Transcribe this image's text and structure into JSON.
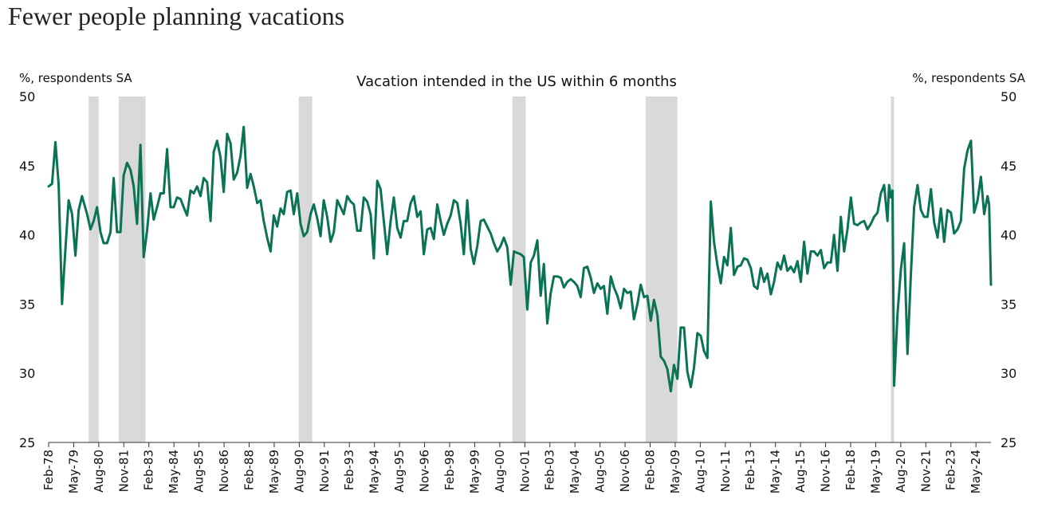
{
  "chart_data": {
    "type": "line",
    "title": "Fewer people planning vacations",
    "subtitle": "Vacation intended in the US within 6 months",
    "ylabel_left": "%, respondents SA",
    "ylabel_right": "%, respondents SA",
    "ylim": [
      25,
      50
    ],
    "yticks": [
      25,
      30,
      35,
      40,
      45,
      50
    ],
    "xlim": [
      1978.08,
      2025.17
    ],
    "x_tick_labels": [
      "Feb-78",
      "May-79",
      "Aug-80",
      "Nov-81",
      "Feb-83",
      "May-84",
      "Aug-85",
      "Nov-86",
      "Feb-88",
      "May-89",
      "Aug-90",
      "Nov-91",
      "Feb-93",
      "May-94",
      "Aug-95",
      "Nov-96",
      "Feb-98",
      "May-99",
      "Aug-00",
      "Nov-01",
      "Feb-03",
      "May-04",
      "Aug-05",
      "Nov-06",
      "Feb-08",
      "May-09",
      "Aug-10",
      "Nov-11",
      "Feb-13",
      "May-14",
      "Aug-15",
      "Nov-16",
      "Feb-18",
      "May-19",
      "Aug-20",
      "Nov-21",
      "Feb-23",
      "May-24"
    ],
    "recessions": [
      [
        1980.08,
        1980.58
      ],
      [
        1981.58,
        1982.92
      ],
      [
        1990.58,
        1991.25
      ],
      [
        2001.25,
        2001.92
      ],
      [
        2007.92,
        2009.5
      ],
      [
        2020.17,
        2020.33
      ]
    ],
    "colors": {
      "line": "#0b7355",
      "recession": "#d9d9d9"
    },
    "series": [
      {
        "values": [
          [
            1978.08,
            43.5
          ],
          [
            1978.25,
            43.7
          ],
          [
            1978.42,
            46.7
          ],
          [
            1978.58,
            43.6
          ],
          [
            1978.75,
            35.0
          ],
          [
            1978.92,
            39.0
          ],
          [
            1979.08,
            42.5
          ],
          [
            1979.25,
            41.5
          ],
          [
            1979.42,
            38.5
          ],
          [
            1979.58,
            41.8
          ],
          [
            1979.75,
            42.8
          ],
          [
            1980.0,
            41.5
          ],
          [
            1980.17,
            40.4
          ],
          [
            1980.33,
            41.0
          ],
          [
            1980.5,
            42.0
          ],
          [
            1980.67,
            40.2
          ],
          [
            1980.83,
            39.4
          ],
          [
            1981.0,
            39.4
          ],
          [
            1981.17,
            40.2
          ],
          [
            1981.33,
            44.1
          ],
          [
            1981.5,
            40.2
          ],
          [
            1981.67,
            40.2
          ],
          [
            1981.83,
            44.3
          ],
          [
            1982.0,
            45.2
          ],
          [
            1982.17,
            44.7
          ],
          [
            1982.33,
            43.5
          ],
          [
            1982.5,
            40.8
          ],
          [
            1982.67,
            46.5
          ],
          [
            1982.83,
            38.4
          ],
          [
            1983.0,
            40.3
          ],
          [
            1983.17,
            43.0
          ],
          [
            1983.33,
            41.1
          ],
          [
            1983.5,
            42.0
          ],
          [
            1983.67,
            43.0
          ],
          [
            1983.83,
            43.0
          ],
          [
            1984.0,
            46.2
          ],
          [
            1984.17,
            42.0
          ],
          [
            1984.33,
            42.0
          ],
          [
            1984.5,
            42.7
          ],
          [
            1984.67,
            42.6
          ],
          [
            1984.83,
            42.0
          ],
          [
            1985.0,
            41.4
          ],
          [
            1985.17,
            43.2
          ],
          [
            1985.33,
            43.0
          ],
          [
            1985.5,
            43.5
          ],
          [
            1985.67,
            42.8
          ],
          [
            1985.83,
            44.1
          ],
          [
            1986.0,
            43.8
          ],
          [
            1986.17,
            41.0
          ],
          [
            1986.33,
            46.0
          ],
          [
            1986.5,
            46.8
          ],
          [
            1986.67,
            45.6
          ],
          [
            1986.83,
            43.1
          ],
          [
            1987.0,
            47.3
          ],
          [
            1987.17,
            46.6
          ],
          [
            1987.33,
            44.0
          ],
          [
            1987.5,
            44.5
          ],
          [
            1987.67,
            45.7
          ],
          [
            1987.83,
            47.8
          ],
          [
            1988.0,
            43.4
          ],
          [
            1988.17,
            44.4
          ],
          [
            1988.33,
            43.5
          ],
          [
            1988.5,
            42.3
          ],
          [
            1988.67,
            42.5
          ],
          [
            1988.83,
            41.0
          ],
          [
            1989.0,
            39.8
          ],
          [
            1989.17,
            38.8
          ],
          [
            1989.33,
            41.4
          ],
          [
            1989.5,
            40.6
          ],
          [
            1989.67,
            41.9
          ],
          [
            1989.83,
            41.5
          ],
          [
            1990.0,
            43.1
          ],
          [
            1990.17,
            43.2
          ],
          [
            1990.33,
            41.5
          ],
          [
            1990.5,
            43.0
          ],
          [
            1990.67,
            40.8
          ],
          [
            1990.83,
            39.9
          ],
          [
            1991.0,
            40.2
          ],
          [
            1991.17,
            41.5
          ],
          [
            1991.33,
            42.2
          ],
          [
            1991.5,
            41.2
          ],
          [
            1991.67,
            39.9
          ],
          [
            1991.83,
            42.5
          ],
          [
            1992.0,
            41.3
          ],
          [
            1992.17,
            39.5
          ],
          [
            1992.33,
            40.2
          ],
          [
            1992.5,
            42.5
          ],
          [
            1992.67,
            42.0
          ],
          [
            1992.83,
            41.5
          ],
          [
            1993.0,
            42.8
          ],
          [
            1993.17,
            42.4
          ],
          [
            1993.33,
            42.2
          ],
          [
            1993.5,
            40.3
          ],
          [
            1993.67,
            40.3
          ],
          [
            1993.83,
            42.7
          ],
          [
            1994.0,
            42.4
          ],
          [
            1994.17,
            41.5
          ],
          [
            1994.33,
            38.3
          ],
          [
            1994.5,
            43.9
          ],
          [
            1994.67,
            43.3
          ],
          [
            1994.83,
            41.0
          ],
          [
            1995.0,
            38.6
          ],
          [
            1995.17,
            41.0
          ],
          [
            1995.33,
            42.7
          ],
          [
            1995.5,
            40.5
          ],
          [
            1995.67,
            39.8
          ],
          [
            1995.83,
            41.0
          ],
          [
            1996.0,
            41.0
          ],
          [
            1996.17,
            42.3
          ],
          [
            1996.33,
            42.8
          ],
          [
            1996.5,
            41.3
          ],
          [
            1996.67,
            41.7
          ],
          [
            1996.83,
            38.6
          ],
          [
            1997.0,
            40.4
          ],
          [
            1997.17,
            40.5
          ],
          [
            1997.33,
            39.7
          ],
          [
            1997.5,
            42.2
          ],
          [
            1997.67,
            41.0
          ],
          [
            1997.83,
            40.0
          ],
          [
            1998.0,
            40.8
          ],
          [
            1998.17,
            41.4
          ],
          [
            1998.33,
            42.5
          ],
          [
            1998.5,
            42.3
          ],
          [
            1998.67,
            40.8
          ],
          [
            1998.83,
            38.6
          ],
          [
            1999.0,
            42.5
          ],
          [
            1999.17,
            39.0
          ],
          [
            1999.33,
            37.9
          ],
          [
            1999.5,
            39.2
          ],
          [
            1999.67,
            41.0
          ],
          [
            1999.83,
            41.1
          ],
          [
            2000.0,
            40.6
          ],
          [
            2000.17,
            40.1
          ],
          [
            2000.33,
            39.4
          ],
          [
            2000.5,
            38.8
          ],
          [
            2000.67,
            39.2
          ],
          [
            2000.83,
            39.8
          ],
          [
            2001.0,
            39.1
          ],
          [
            2001.17,
            36.4
          ],
          [
            2001.33,
            38.8
          ],
          [
            2001.5,
            38.7
          ],
          [
            2001.67,
            38.6
          ],
          [
            2001.83,
            38.4
          ],
          [
            2002.0,
            34.6
          ],
          [
            2002.17,
            38.0
          ],
          [
            2002.33,
            38.5
          ],
          [
            2002.5,
            39.6
          ],
          [
            2002.67,
            35.6
          ],
          [
            2002.83,
            37.9
          ],
          [
            2003.0,
            33.6
          ],
          [
            2003.17,
            35.8
          ],
          [
            2003.33,
            37.0
          ],
          [
            2003.5,
            37.0
          ],
          [
            2003.67,
            36.9
          ],
          [
            2003.83,
            36.2
          ],
          [
            2004.0,
            36.6
          ],
          [
            2004.17,
            36.8
          ],
          [
            2004.33,
            36.6
          ],
          [
            2004.5,
            36.3
          ],
          [
            2004.67,
            35.5
          ],
          [
            2004.83,
            37.6
          ],
          [
            2005.0,
            37.7
          ],
          [
            2005.17,
            36.9
          ],
          [
            2005.33,
            35.8
          ],
          [
            2005.5,
            36.5
          ],
          [
            2005.67,
            36.1
          ],
          [
            2005.83,
            36.3
          ],
          [
            2006.0,
            34.3
          ],
          [
            2006.17,
            37.0
          ],
          [
            2006.33,
            36.2
          ],
          [
            2006.5,
            35.6
          ],
          [
            2006.67,
            34.7
          ],
          [
            2006.83,
            36.1
          ],
          [
            2007.0,
            35.8
          ],
          [
            2007.17,
            35.9
          ],
          [
            2007.33,
            33.9
          ],
          [
            2007.5,
            35.0
          ],
          [
            2007.67,
            36.4
          ],
          [
            2007.83,
            35.5
          ],
          [
            2008.0,
            35.6
          ],
          [
            2008.17,
            33.8
          ],
          [
            2008.33,
            35.3
          ],
          [
            2008.5,
            34.2
          ],
          [
            2008.67,
            31.2
          ],
          [
            2008.83,
            30.9
          ],
          [
            2009.0,
            30.3
          ],
          [
            2009.17,
            28.7
          ],
          [
            2009.33,
            30.6
          ],
          [
            2009.5,
            29.6
          ],
          [
            2009.67,
            33.3
          ],
          [
            2009.83,
            33.3
          ],
          [
            2010.0,
            30.1
          ],
          [
            2010.17,
            29.0
          ],
          [
            2010.33,
            30.4
          ],
          [
            2010.5,
            32.9
          ],
          [
            2010.67,
            32.7
          ],
          [
            2010.83,
            31.6
          ],
          [
            2011.0,
            31.1
          ],
          [
            2011.17,
            42.4
          ],
          [
            2011.33,
            39.5
          ],
          [
            2011.5,
            37.8
          ],
          [
            2011.67,
            36.5
          ],
          [
            2011.83,
            38.4
          ],
          [
            2012.0,
            37.8
          ],
          [
            2012.17,
            40.5
          ],
          [
            2012.33,
            37.1
          ],
          [
            2012.5,
            37.7
          ],
          [
            2012.67,
            37.8
          ],
          [
            2012.83,
            38.3
          ],
          [
            2013.0,
            38.2
          ],
          [
            2013.17,
            37.6
          ],
          [
            2013.33,
            36.3
          ],
          [
            2013.5,
            36.1
          ],
          [
            2013.67,
            37.6
          ],
          [
            2013.83,
            36.6
          ],
          [
            2014.0,
            37.2
          ],
          [
            2014.17,
            35.7
          ],
          [
            2014.33,
            36.6
          ],
          [
            2014.5,
            38.0
          ],
          [
            2014.67,
            37.5
          ],
          [
            2014.83,
            38.5
          ],
          [
            2015.0,
            37.4
          ],
          [
            2015.17,
            37.7
          ],
          [
            2015.33,
            37.3
          ],
          [
            2015.5,
            38.1
          ],
          [
            2015.67,
            36.6
          ],
          [
            2015.83,
            39.5
          ],
          [
            2016.0,
            37.2
          ],
          [
            2016.17,
            38.8
          ],
          [
            2016.33,
            38.8
          ],
          [
            2016.5,
            38.5
          ],
          [
            2016.67,
            38.9
          ],
          [
            2016.83,
            37.6
          ],
          [
            2017.0,
            38.0
          ],
          [
            2017.17,
            38.0
          ],
          [
            2017.33,
            40.0
          ],
          [
            2017.5,
            37.4
          ],
          [
            2017.67,
            41.3
          ],
          [
            2017.83,
            38.8
          ],
          [
            2018.0,
            40.4
          ],
          [
            2018.17,
            42.7
          ],
          [
            2018.33,
            40.8
          ],
          [
            2018.5,
            40.7
          ],
          [
            2018.67,
            40.9
          ],
          [
            2018.83,
            41.0
          ],
          [
            2019.0,
            40.4
          ],
          [
            2019.17,
            40.8
          ],
          [
            2019.33,
            41.3
          ],
          [
            2019.5,
            41.6
          ],
          [
            2019.67,
            43.0
          ],
          [
            2019.83,
            43.6
          ],
          [
            2020.0,
            41.0
          ],
          [
            2020.08,
            43.6
          ],
          [
            2020.17,
            42.7
          ],
          [
            2020.25,
            43.2
          ],
          [
            2020.33,
            29.1
          ],
          [
            2020.5,
            34.3
          ],
          [
            2020.67,
            37.5
          ],
          [
            2020.83,
            39.4
          ],
          [
            2021.0,
            31.4
          ],
          [
            2021.17,
            37.2
          ],
          [
            2021.33,
            42.0
          ],
          [
            2021.5,
            43.6
          ],
          [
            2021.67,
            41.8
          ],
          [
            2021.83,
            41.3
          ],
          [
            2022.0,
            41.3
          ],
          [
            2022.17,
            43.3
          ],
          [
            2022.33,
            40.9
          ],
          [
            2022.5,
            39.8
          ],
          [
            2022.67,
            41.9
          ],
          [
            2022.83,
            39.5
          ],
          [
            2023.0,
            41.8
          ],
          [
            2023.17,
            41.6
          ],
          [
            2023.33,
            40.1
          ],
          [
            2023.5,
            40.4
          ],
          [
            2023.67,
            41.0
          ],
          [
            2023.83,
            44.8
          ],
          [
            2024.0,
            46.1
          ],
          [
            2024.17,
            46.8
          ],
          [
            2024.33,
            41.6
          ],
          [
            2024.5,
            42.5
          ],
          [
            2024.67,
            44.2
          ],
          [
            2024.83,
            41.5
          ],
          [
            2025.0,
            42.8
          ],
          [
            2025.08,
            42.2
          ],
          [
            2025.17,
            36.4
          ]
        ]
      }
    ]
  }
}
